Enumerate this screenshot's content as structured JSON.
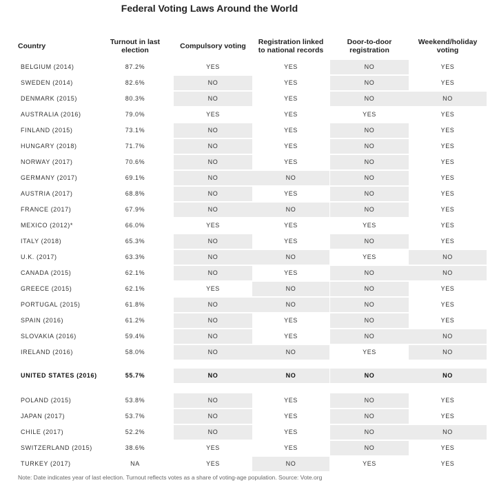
{
  "chart_data": {
    "type": "table",
    "title": "Federal Voting Laws Around the World",
    "columns": [
      "Country",
      "Turnout in last election",
      "Compulsory voting",
      "Registration linked to national records",
      "Door-to-door registration",
      "Weekend/holiday voting"
    ],
    "header_lines": [
      [
        "Country"
      ],
      [
        "Turnout in last",
        "election"
      ],
      [
        "Compulsory voting"
      ],
      [
        "Registration linked",
        "to national records"
      ],
      [
        "Door-to-door",
        "registration"
      ],
      [
        "Weekend/holiday",
        "voting"
      ]
    ],
    "rows": [
      {
        "country": "BELGIUM (2014)",
        "turnout": "87.2%",
        "compulsory": "YES",
        "registration": "YES",
        "door": "NO",
        "weekend": "YES"
      },
      {
        "country": "SWEDEN (2014)",
        "turnout": "82.6%",
        "compulsory": "NO",
        "registration": "YES",
        "door": "NO",
        "weekend": "YES"
      },
      {
        "country": "DENMARK (2015)",
        "turnout": "80.3%",
        "compulsory": "NO",
        "registration": "YES",
        "door": "NO",
        "weekend": "NO"
      },
      {
        "country": "AUSTRALIA (2016)",
        "turnout": "79.0%",
        "compulsory": "YES",
        "registration": "YES",
        "door": "YES",
        "weekend": "YES"
      },
      {
        "country": "FINLAND (2015)",
        "turnout": "73.1%",
        "compulsory": "NO",
        "registration": "YES",
        "door": "NO",
        "weekend": "YES"
      },
      {
        "country": "HUNGARY (2018)",
        "turnout": "71.7%",
        "compulsory": "NO",
        "registration": "YES",
        "door": "NO",
        "weekend": "YES"
      },
      {
        "country": "NORWAY (2017)",
        "turnout": "70.6%",
        "compulsory": "NO",
        "registration": "YES",
        "door": "NO",
        "weekend": "YES"
      },
      {
        "country": "GERMANY (2017)",
        "turnout": "69.1%",
        "compulsory": "NO",
        "registration": "NO",
        "door": "NO",
        "weekend": "YES"
      },
      {
        "country": "AUSTRIA (2017)",
        "turnout": "68.8%",
        "compulsory": "NO",
        "registration": "YES",
        "door": "NO",
        "weekend": "YES"
      },
      {
        "country": "FRANCE (2017)",
        "turnout": "67.9%",
        "compulsory": "NO",
        "registration": "NO",
        "door": "NO",
        "weekend": "YES"
      },
      {
        "country": "MEXICO (2012)*",
        "turnout": "66.0%",
        "compulsory": "YES",
        "registration": "YES",
        "door": "YES",
        "weekend": "YES"
      },
      {
        "country": "ITALY (2018)",
        "turnout": "65.3%",
        "compulsory": "NO",
        "registration": "YES",
        "door": "NO",
        "weekend": "YES"
      },
      {
        "country": "U.K. (2017)",
        "turnout": "63.3%",
        "compulsory": "NO",
        "registration": "NO",
        "door": "YES",
        "weekend": "NO"
      },
      {
        "country": "CANADA (2015)",
        "turnout": "62.1%",
        "compulsory": "NO",
        "registration": "YES",
        "door": "NO",
        "weekend": "NO"
      },
      {
        "country": "GREECE (2015)",
        "turnout": "62.1%",
        "compulsory": "YES",
        "registration": "NO",
        "door": "NO",
        "weekend": "YES"
      },
      {
        "country": "PORTUGAL (2015)",
        "turnout": "61.8%",
        "compulsory": "NO",
        "registration": "NO",
        "door": "NO",
        "weekend": "YES"
      },
      {
        "country": "SPAIN (2016)",
        "turnout": "61.2%",
        "compulsory": "NO",
        "registration": "YES",
        "door": "NO",
        "weekend": "YES"
      },
      {
        "country": "SLOVAKIA (2016)",
        "turnout": "59.4%",
        "compulsory": "NO",
        "registration": "YES",
        "door": "NO",
        "weekend": "NO"
      },
      {
        "country": "IRELAND (2016)",
        "turnout": "58.0%",
        "compulsory": "NO",
        "registration": "NO",
        "door": "YES",
        "weekend": "NO"
      },
      {
        "country": "UNITED STATES (2016)",
        "turnout": "55.7%",
        "compulsory": "NO",
        "registration": "NO",
        "door": "NO",
        "weekend": "NO",
        "highlight": true
      },
      {
        "country": "POLAND (2015)",
        "turnout": "53.8%",
        "compulsory": "NO",
        "registration": "YES",
        "door": "NO",
        "weekend": "YES"
      },
      {
        "country": "JAPAN (2017)",
        "turnout": "53.7%",
        "compulsory": "NO",
        "registration": "YES",
        "door": "NO",
        "weekend": "YES"
      },
      {
        "country": "CHILE (2017)",
        "turnout": "52.2%",
        "compulsory": "NO",
        "registration": "YES",
        "door": "NO",
        "weekend": "NO"
      },
      {
        "country": "SWITZERLAND (2015)",
        "turnout": "38.6%",
        "compulsory": "YES",
        "registration": "YES",
        "door": "NO",
        "weekend": "YES"
      },
      {
        "country": "TURKEY (2017)",
        "turnout": "NA",
        "compulsory": "YES",
        "registration": "NO",
        "door": "YES",
        "weekend": "YES"
      }
    ],
    "note": "Note: Date indicates year of last election. Turnout reflects votes as a share of voting-age population. Source: Vote.org",
    "colors": {
      "shade": "#ebebeb",
      "text": "#333333"
    }
  }
}
